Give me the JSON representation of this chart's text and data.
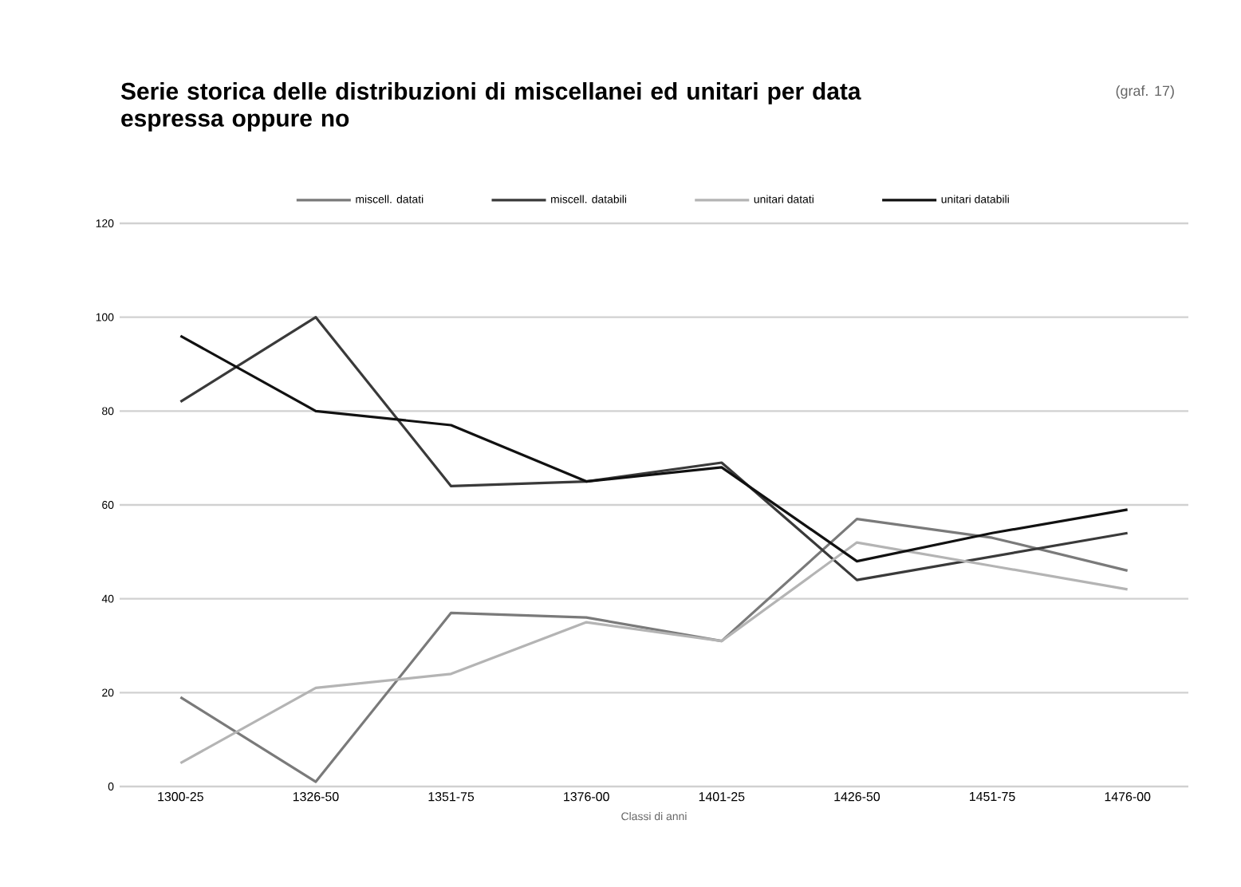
{
  "chart_data": {
    "type": "line",
    "title": "Serie storica delle distribuzioni di miscellanei ed unitari per data espressa oppure no",
    "xlabel": "Classi di anni",
    "annotations": [
      "(graf. 17)"
    ],
    "categories": [
      "1300-25",
      "1326-50",
      "1351-75",
      "1376-00",
      "1401-25",
      "1426-50",
      "1451-75",
      "1476-00"
    ],
    "series": [
      {
        "name": "miscell. datati",
        "color": "#7a7a7a",
        "values": [
          19,
          1,
          37,
          36,
          31,
          57,
          53,
          46
        ]
      },
      {
        "name": "miscell. databili",
        "color": "#3a3a3a",
        "values": [
          82,
          100,
          64,
          65,
          69,
          44,
          49,
          54
        ]
      },
      {
        "name": "unitari datati",
        "color": "#b4b4b4",
        "values": [
          5,
          21,
          24,
          35,
          31,
          52,
          47,
          42
        ]
      },
      {
        "name": "unitari databili",
        "color": "#111111",
        "values": [
          96,
          80,
          77,
          65,
          68,
          48,
          54,
          59
        ]
      }
    ],
    "ylim": [
      0,
      120
    ],
    "yticks": [
      0,
      20,
      40,
      60,
      80,
      100,
      120
    ],
    "grid": "y",
    "legend": "top",
    "marker": "none",
    "line_style": "solid"
  }
}
